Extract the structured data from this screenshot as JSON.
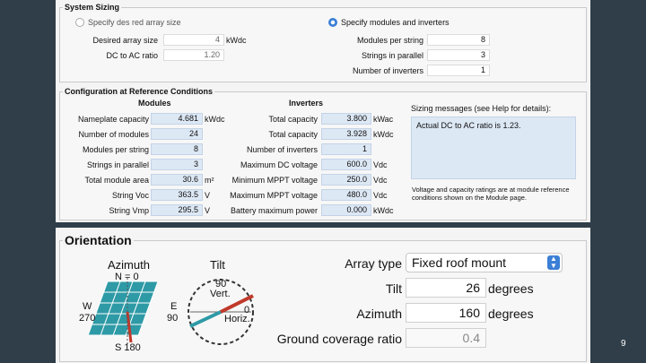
{
  "system_sizing": {
    "title": "System Sizing",
    "option_desired": "Specify des red array size",
    "option_modules": "Specify modules and inverters",
    "desired_array_size_label": "Desired array size",
    "desired_array_size_value": "4",
    "desired_array_size_unit": "kWdc",
    "dc_ac_ratio_label": "DC to AC ratio",
    "dc_ac_ratio_value": "1.20",
    "modules_per_string_label": "Modules per string",
    "modules_per_string_value": "8",
    "strings_parallel_label": "Strings in parallel",
    "strings_parallel_value": "3",
    "num_inverters_label": "Number of inverters",
    "num_inverters_value": "1"
  },
  "config": {
    "title": "Configuration at Reference Conditions",
    "modules_header": "Modules",
    "inverters_header": "Inverters",
    "modules": [
      {
        "label": "Nameplate capacity",
        "value": "4.681",
        "unit": "kWdc"
      },
      {
        "label": "Number of modules",
        "value": "24",
        "unit": ""
      },
      {
        "label": "Modules per string",
        "value": "8",
        "unit": ""
      },
      {
        "label": "Strings in parallel",
        "value": "3",
        "unit": ""
      },
      {
        "label": "Total module area",
        "value": "30.6",
        "unit": "m²"
      },
      {
        "label": "String Voc",
        "value": "363.5",
        "unit": "V"
      },
      {
        "label": "String Vmp",
        "value": "295.5",
        "unit": "V"
      }
    ],
    "inverters": [
      {
        "label": "Total capacity",
        "value": "3.800",
        "unit": "kWac"
      },
      {
        "label": "Total capacity",
        "value": "3.928",
        "unit": "kWdc"
      },
      {
        "label": "Number of inverters",
        "value": "1",
        "unit": ""
      },
      {
        "label": "Maximum DC voltage",
        "value": "600.0",
        "unit": "Vdc"
      },
      {
        "label": "Minimum MPPT voltage",
        "value": "250.0",
        "unit": "Vdc"
      },
      {
        "label": "Maximum MPPT voltage",
        "value": "480.0",
        "unit": "Vdc"
      },
      {
        "label": "Battery maximum power",
        "value": "0.000",
        "unit": "kWdc"
      }
    ],
    "sizing_messages_title": "Sizing messages (see Help for details):",
    "sizing_message": "Actual DC to AC ratio is 1.23.",
    "ratings_note": "Voltage and capacity ratings are at module reference conditions shown on the Module page."
  },
  "orientation": {
    "title": "Orientation",
    "azimuth_title": "Azimuth",
    "tilt_title": "Tilt",
    "compass": {
      "n": "N = 0",
      "e": "E",
      "e_deg": "90",
      "w": "W",
      "w_deg": "270",
      "s": "S 180"
    },
    "tilt_labels": {
      "vert_deg": "90",
      "vert": "Vert.",
      "horiz_deg": "0",
      "horiz": "Horiz."
    },
    "array_type_label": "Array type",
    "array_type_value": "Fixed roof mount",
    "tilt_label": "Tilt",
    "tilt_value": "26",
    "tilt_unit": "degrees",
    "azimuth_label": "Azimuth",
    "azimuth_value": "160",
    "azimuth_unit": "degrees",
    "gcr_label": "Ground coverage ratio",
    "gcr_value": "0.4"
  },
  "slide_number": "9",
  "colors": {
    "accent": "#3b7fd6",
    "panel_cell": "#2e9aa6",
    "needle": "#c0392b"
  }
}
